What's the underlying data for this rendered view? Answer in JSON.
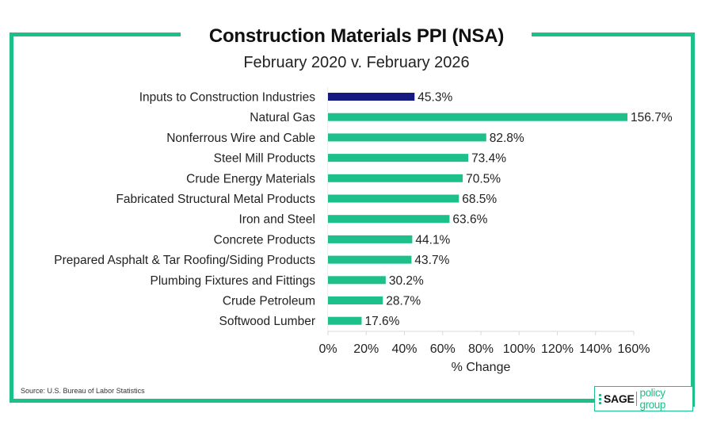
{
  "chart_data": {
    "type": "bar",
    "orientation": "horizontal",
    "title": "Construction Materials PPI (NSA)",
    "subtitle": "February 2020 v. February 2026",
    "xlabel": "% Change",
    "ylabel": "",
    "xlim": [
      0,
      160
    ],
    "x_ticks": [
      0,
      20,
      40,
      60,
      80,
      100,
      120,
      140,
      160
    ],
    "x_tick_labels": [
      "0%",
      "20%",
      "40%",
      "60%",
      "80%",
      "100%",
      "120%",
      "140%",
      "160%"
    ],
    "grid": false,
    "categories": [
      "Inputs to Construction Industries",
      "Natural Gas",
      "Nonferrous Wire and Cable",
      "Steel Mill Products",
      "Crude Energy Materials",
      "Fabricated Structural Metal Products",
      "Iron and Steel",
      "Concrete Products",
      "Prepared Asphalt & Tar Roofing/Siding Products",
      "Plumbing Fixtures and Fittings",
      "Crude Petroleum",
      "Softwood Lumber"
    ],
    "values": [
      45.3,
      156.7,
      82.8,
      73.4,
      70.5,
      68.5,
      63.6,
      44.1,
      43.7,
      30.2,
      28.7,
      17.6
    ],
    "value_labels": [
      "45.3%",
      "156.7%",
      "82.8%",
      "73.4%",
      "70.5%",
      "68.5%",
      "63.6%",
      "44.1%",
      "43.7%",
      "30.2%",
      "28.7%",
      "17.6%"
    ],
    "highlight_index": 0,
    "colors": {
      "highlight": "#141a80",
      "default": "#1dbf8a"
    }
  },
  "source": "Source: U.S. Bureau of Labor Statistics",
  "logo": {
    "brand": "SAGE",
    "tagline": "policy group"
  },
  "colors": {
    "frame": "#1dbf8a",
    "text": "#222222"
  }
}
